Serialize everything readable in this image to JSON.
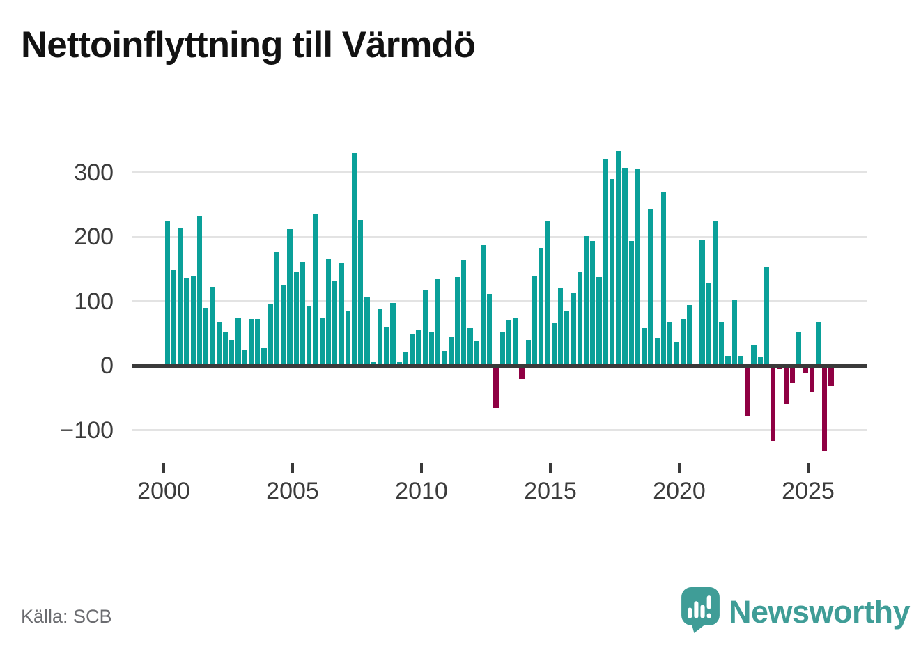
{
  "title": "Nettoinflyttning till Värmdö",
  "source": "Källa: SCB",
  "branding": {
    "name": "Newsworthy",
    "icon": "speech-bubble-bar-chart-icon"
  },
  "colors": {
    "positive_bar": "#0aa099",
    "negative_bar": "#8f0043",
    "axis": "#3a3a3a",
    "grid": "#e3e3e3",
    "tick_label": "#3b3b3b",
    "source_text": "#6b6c70",
    "brand": "#3f9d97",
    "title": "#121212"
  },
  "chart_data": {
    "type": "bar",
    "title": "Nettoinflyttning till Värmdö",
    "frequency": "quarterly",
    "grid": "horizontal",
    "ylim": [
      -146,
      341
    ],
    "yticks": [
      300,
      200,
      100,
      0,
      -100
    ],
    "ytick_labels": [
      "300",
      "200",
      "100",
      "0",
      "−100"
    ],
    "xtick_years": [
      2000,
      2005,
      2010,
      2015,
      2020,
      2025
    ],
    "xtick_labels": [
      "2000",
      "2005",
      "2010",
      "2015",
      "2020",
      "2025"
    ],
    "categories": [
      "2000 Q1",
      "2000 Q2",
      "2000 Q3",
      "2000 Q4",
      "2001 Q1",
      "2001 Q2",
      "2001 Q3",
      "2001 Q4",
      "2002 Q1",
      "2002 Q2",
      "2002 Q3",
      "2002 Q4",
      "2003 Q1",
      "2003 Q2",
      "2003 Q3",
      "2003 Q4",
      "2004 Q1",
      "2004 Q2",
      "2004 Q3",
      "2004 Q4",
      "2005 Q1",
      "2005 Q2",
      "2005 Q3",
      "2005 Q4",
      "2006 Q1",
      "2006 Q2",
      "2006 Q3",
      "2006 Q4",
      "2007 Q1",
      "2007 Q2",
      "2007 Q3",
      "2007 Q4",
      "2008 Q1",
      "2008 Q2",
      "2008 Q3",
      "2008 Q4",
      "2009 Q1",
      "2009 Q2",
      "2009 Q3",
      "2009 Q4",
      "2010 Q1",
      "2010 Q2",
      "2010 Q3",
      "2010 Q4",
      "2011 Q1",
      "2011 Q2",
      "2011 Q3",
      "2011 Q4",
      "2012 Q1",
      "2012 Q2",
      "2012 Q3",
      "2012 Q4",
      "2013 Q1",
      "2013 Q2",
      "2013 Q3",
      "2013 Q4",
      "2014 Q1",
      "2014 Q2",
      "2014 Q3",
      "2014 Q4",
      "2015 Q1",
      "2015 Q2",
      "2015 Q3",
      "2015 Q4",
      "2016 Q1",
      "2016 Q2",
      "2016 Q3",
      "2016 Q4",
      "2017 Q1",
      "2017 Q2",
      "2017 Q3",
      "2017 Q4",
      "2018 Q1",
      "2018 Q2",
      "2018 Q3",
      "2018 Q4",
      "2019 Q1",
      "2019 Q2",
      "2019 Q3",
      "2019 Q4",
      "2020 Q1",
      "2020 Q2",
      "2020 Q3",
      "2020 Q4",
      "2021 Q1",
      "2021 Q2",
      "2021 Q3",
      "2021 Q4",
      "2022 Q1",
      "2022 Q2",
      "2022 Q3",
      "2022 Q4",
      "2023 Q1",
      "2023 Q2",
      "2023 Q3",
      "2023 Q4",
      "2024 Q1",
      "2024 Q2",
      "2024 Q3",
      "2024 Q4",
      "2025 Q1",
      "2025 Q2",
      "2025 Q3",
      "2025 Q4"
    ],
    "values": [
      225,
      149,
      214,
      136,
      140,
      232,
      90,
      122,
      68,
      52,
      40,
      74,
      25,
      72,
      72,
      28,
      95,
      176,
      125,
      212,
      146,
      161,
      93,
      236,
      75,
      165,
      131,
      159,
      84,
      330,
      226,
      106,
      5,
      89,
      59,
      97,
      5,
      22,
      50,
      55,
      118,
      53,
      134,
      23,
      44,
      138,
      164,
      58,
      39,
      187,
      111,
      -66,
      52,
      70,
      75,
      -21,
      40,
      139,
      183,
      224,
      66,
      120,
      84,
      114,
      145,
      201,
      193,
      137,
      321,
      290,
      333,
      307,
      194,
      305,
      58,
      243,
      43,
      269,
      68,
      37,
      72,
      94,
      3,
      196,
      129,
      225,
      67,
      15,
      102,
      15,
      -79,
      32,
      14,
      152,
      -117,
      -5,
      -59,
      -27,
      52,
      -11,
      -41,
      68,
      -132,
      -31
    ]
  }
}
